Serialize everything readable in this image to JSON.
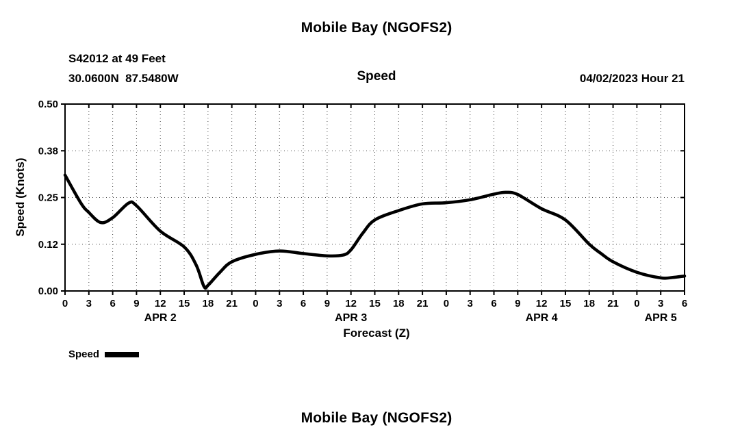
{
  "page": {
    "title": "Mobile Bay (NGOFS2)",
    "bottom_title": "Mobile Bay (NGOFS2)"
  },
  "header": {
    "station": "S42012 at 49 Feet",
    "coordinates": "30.0600N  87.5480W",
    "plot_title": "Speed",
    "datetime": "04/02/2023 Hour 21"
  },
  "legend": {
    "label": "Speed",
    "color": "#000000"
  },
  "chart_data": {
    "type": "line",
    "title": "Speed",
    "xlabel": "Forecast (Z)",
    "ylabel": "Speed (Knots)",
    "xlim_hours": [
      0,
      78
    ],
    "ylim": [
      0,
      0.5
    ],
    "yticks": [
      0,
      0.125,
      0.25,
      0.375,
      0.5
    ],
    "ytick_labels": [
      "0.00",
      "0.12",
      "0.25",
      "0.38",
      "0.50"
    ],
    "xtick_step_hours": 3,
    "xtick_labels": [
      "0",
      "3",
      "6",
      "9",
      "12",
      "15",
      "18",
      "21",
      "0",
      "3",
      "6",
      "9",
      "12",
      "15",
      "18",
      "21",
      "0",
      "3",
      "6",
      "9",
      "12",
      "15",
      "18",
      "21",
      "0",
      "3",
      "6"
    ],
    "day_labels": [
      {
        "label": "APR 2",
        "center_hour": 12
      },
      {
        "label": "APR 3",
        "center_hour": 36
      },
      {
        "label": "APR 4",
        "center_hour": 60
      },
      {
        "label": "APR 5",
        "center_hour": 75
      }
    ],
    "grid": "dotted",
    "legend_position": "bottom-left",
    "series": [
      {
        "name": "Speed",
        "color": "#000000",
        "x_hours": [
          0,
          2,
          3,
          4.5,
          6,
          8,
          9,
          12,
          15,
          16.5,
          17.5,
          18,
          19.5,
          21,
          24,
          27,
          30,
          33,
          35,
          36,
          37.5,
          39,
          42,
          45,
          48,
          51,
          54,
          55.5,
          57,
          60,
          63,
          66,
          67.5,
          69,
          72,
          75,
          76.5,
          78
        ],
        "values": [
          0.31,
          0.235,
          0.21,
          0.183,
          0.196,
          0.235,
          0.228,
          0.16,
          0.118,
          0.07,
          0.012,
          0.015,
          0.05,
          0.078,
          0.098,
          0.107,
          0.1,
          0.094,
          0.096,
          0.11,
          0.155,
          0.19,
          0.215,
          0.233,
          0.236,
          0.244,
          0.259,
          0.264,
          0.258,
          0.22,
          0.19,
          0.125,
          0.1,
          0.078,
          0.05,
          0.035,
          0.036,
          0.04
        ]
      }
    ]
  }
}
